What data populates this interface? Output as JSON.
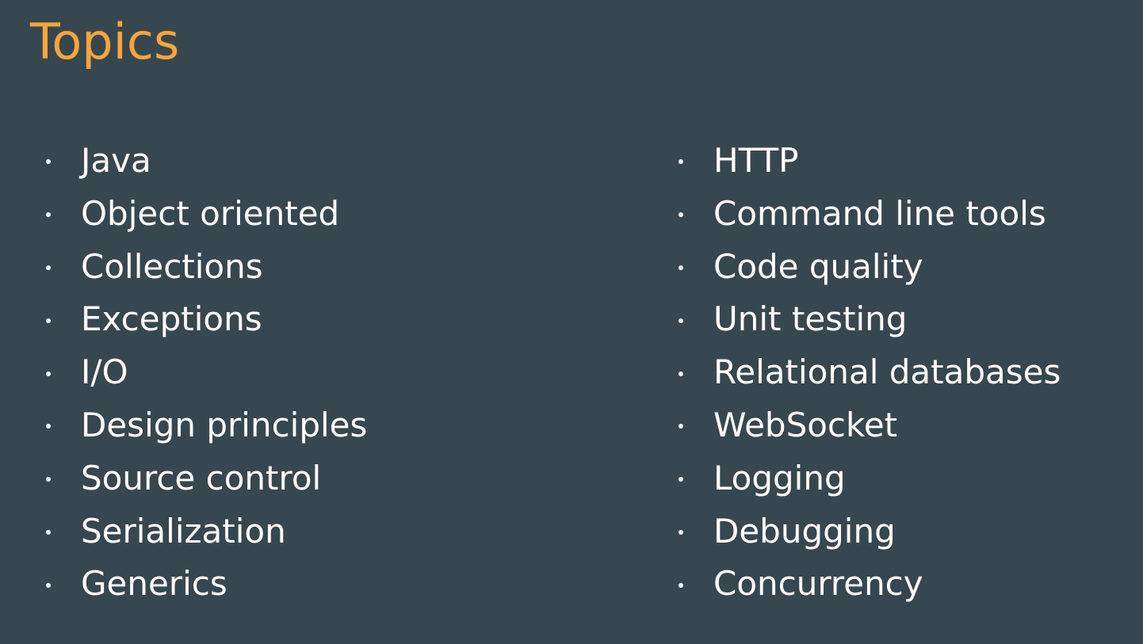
{
  "slide": {
    "title": "Topics",
    "colors": {
      "background": "#37474f",
      "title": "#f7a53b",
      "text": "#ffffff"
    },
    "left_column": [
      "Java",
      "Object oriented",
      "Collections",
      "Exceptions",
      "I/O",
      "Design principles",
      "Source control",
      "Serialization",
      "Generics"
    ],
    "right_column": [
      "HTTP",
      "Command line tools",
      "Code quality",
      "Unit testing",
      "Relational databases",
      "WebSocket",
      "Logging",
      "Debugging",
      "Concurrency"
    ]
  }
}
